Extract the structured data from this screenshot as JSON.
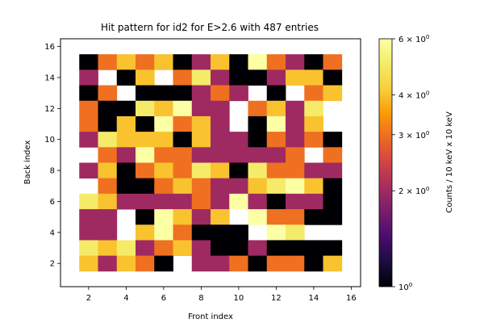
{
  "chart_data": {
    "type": "heatmap",
    "title": "Hit pattern for id2 for E>2.6 with 487 entries",
    "xlabel": "Front index",
    "ylabel": "Back index",
    "xlim": [
      0.5,
      16.5
    ],
    "ylim": [
      0.5,
      16.5
    ],
    "x_ticks": [
      2,
      4,
      6,
      8,
      10,
      12,
      14,
      16
    ],
    "y_ticks": [
      2,
      4,
      6,
      8,
      10,
      12,
      14,
      16
    ],
    "colormap": "inferno",
    "scale": "log",
    "colorbar": {
      "label": "Counts / 10 keV x 10 keV",
      "vmin": 1,
      "vmax": 6,
      "ticks": [
        {
          "value": 1,
          "base": "10",
          "exp": "0"
        },
        {
          "value": 2,
          "base": "2 × 10",
          "exp": "0"
        },
        {
          "value": 3,
          "base": "3 × 10",
          "exp": "0"
        },
        {
          "value": 4,
          "base": "4 × 10",
          "exp": "0"
        },
        {
          "value": 6,
          "base": "6 × 10",
          "exp": "0"
        }
      ]
    },
    "note": "matrix rows run from back index 15 (first row) down to back index 2; columns are front index 2..15; null = empty bin",
    "x_index_start": 2,
    "y_index_start": 15,
    "values": [
      [
        1,
        3,
        4,
        3,
        4,
        1,
        2,
        4,
        1,
        6,
        3,
        2,
        1,
        3
      ],
      [
        2,
        null,
        1,
        4,
        null,
        3,
        5,
        2,
        1,
        1,
        2,
        4,
        4,
        1
      ],
      [
        1,
        3,
        null,
        1,
        1,
        1,
        2,
        3,
        2,
        null,
        1,
        null,
        3,
        4
      ],
      [
        3,
        1,
        1,
        5,
        4,
        6,
        2,
        2,
        null,
        3,
        4,
        2,
        5,
        null
      ],
      [
        3,
        1,
        4,
        1,
        6,
        3,
        4,
        2,
        null,
        1,
        6,
        2,
        4,
        null
      ],
      [
        2,
        5,
        4,
        4,
        4,
        1,
        4,
        2,
        2,
        1,
        3,
        2,
        3,
        1
      ],
      [
        null,
        3,
        2,
        6,
        3,
        3,
        2,
        2,
        2,
        2,
        2,
        3,
        null,
        3
      ],
      [
        2,
        4,
        1,
        3,
        4,
        3,
        5,
        4,
        1,
        5,
        3,
        3,
        2,
        2
      ],
      [
        null,
        3,
        1,
        1,
        3,
        4,
        3,
        2,
        2,
        4,
        5,
        6,
        4,
        1
      ],
      [
        5,
        4,
        2,
        2,
        2,
        2,
        3,
        2,
        6,
        2,
        1,
        2,
        2,
        1
      ],
      [
        2,
        2,
        null,
        1,
        6,
        4,
        2,
        4,
        null,
        6,
        3,
        3,
        1,
        1
      ],
      [
        2,
        2,
        null,
        4,
        6,
        3,
        1,
        1,
        1,
        null,
        6,
        5,
        null,
        null
      ],
      [
        5,
        4,
        5,
        2,
        3,
        4,
        2,
        1,
        1,
        2,
        1,
        1,
        1,
        1
      ],
      [
        4,
        2,
        4,
        3,
        1,
        null,
        2,
        2,
        3,
        1,
        3,
        3,
        1,
        4
      ]
    ]
  }
}
